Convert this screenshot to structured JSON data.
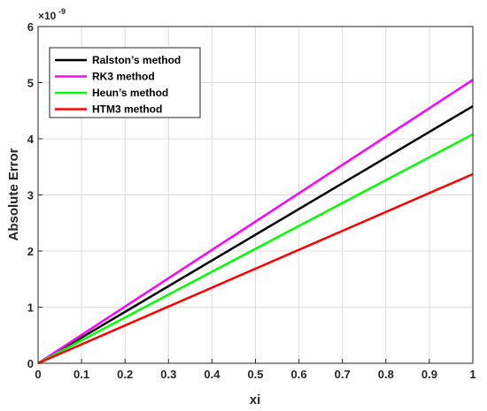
{
  "chart_data": {
    "type": "line",
    "title": "",
    "xlabel": "xi",
    "ylabel": "Absolute Error",
    "xlim": [
      0,
      1
    ],
    "ylim": [
      0,
      6
    ],
    "x_ticks": [
      0,
      0.1,
      0.2,
      0.3,
      0.4,
      0.5,
      0.6,
      0.7,
      0.8,
      0.9,
      1
    ],
    "x_tick_labels": [
      "0",
      "0.1",
      "0.2",
      "0.3",
      "0.4",
      "0.5",
      "0.6",
      "0.7",
      "0.8",
      "0.9",
      "1"
    ],
    "y_ticks": [
      0,
      1,
      2,
      3,
      4,
      5,
      6
    ],
    "y_tick_labels": [
      "0",
      "1",
      "2",
      "3",
      "4",
      "5",
      "6"
    ],
    "y_exponent": {
      "base": "×10",
      "power": "-9"
    },
    "grid": true,
    "legend_placement": "top-left",
    "series": [
      {
        "name": "Ralston’s method",
        "color": "#000000",
        "x": [
          0,
          1
        ],
        "y": [
          0,
          4.58
        ]
      },
      {
        "name": "RK3 method",
        "color": "#ff00ff",
        "x": [
          0,
          1
        ],
        "y": [
          0,
          5.05
        ]
      },
      {
        "name": "Heun’s method",
        "color": "#00ff00",
        "x": [
          0,
          1
        ],
        "y": [
          0,
          4.08
        ]
      },
      {
        "name": "HTM3 method",
        "color": "#ff0000",
        "x": [
          0,
          1
        ],
        "y": [
          0,
          3.37
        ]
      }
    ]
  }
}
